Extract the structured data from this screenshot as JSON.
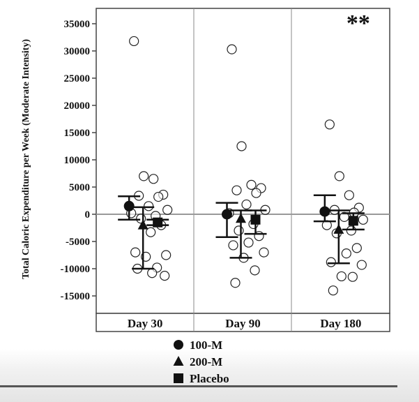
{
  "chart_data": {
    "type": "scatter",
    "title": "",
    "xlabel": "",
    "ylabel": "Total Caloric Expenditure per Week (Moderate Intensity)",
    "ylim": [
      -18000,
      38000
    ],
    "yticks": [
      35000,
      30000,
      25000,
      20000,
      15000,
      10000,
      5000,
      0,
      -5000,
      -10000,
      -15000
    ],
    "categories": [
      "Day 30",
      "Day 90",
      "Day 180"
    ],
    "reference_line": 0,
    "annotations": [
      {
        "text": "**",
        "category": "Day 180"
      }
    ],
    "series": [
      {
        "name": "100-M",
        "marker": "circle",
        "means": [
          1500,
          0,
          500
        ],
        "error_low": [
          -1000,
          -4200,
          -1300
        ],
        "error_high": [
          3300,
          2100,
          3500
        ]
      },
      {
        "name": "200-M",
        "marker": "triangle",
        "means": [
          -2000,
          -800,
          -2800
        ],
        "error_low": [
          -10000,
          -8000,
          -9000
        ],
        "error_high": [
          1300,
          700,
          700
        ]
      },
      {
        "name": "Placebo",
        "marker": "square",
        "means": [
          -1500,
          -1000,
          -1200
        ],
        "error_low": [
          -2000,
          -3600,
          -2800
        ],
        "error_high": [
          -1000,
          700,
          200
        ]
      }
    ],
    "individual_points": [
      {
        "category": "Day 30",
        "values": [
          31800,
          7000,
          6500,
          3600,
          3400,
          3200,
          1500,
          800,
          200,
          -300,
          -800,
          -2000,
          -3300,
          -7000,
          -7500,
          -7800,
          -9800,
          -10000,
          -10800,
          -11300
        ]
      },
      {
        "category": "Day 90",
        "values": [
          30300,
          12500,
          5400,
          4800,
          4400,
          3900,
          1800,
          800,
          200,
          -1800,
          -3000,
          -4000,
          -5200,
          -5700,
          -7000,
          -8000,
          -10300,
          -12600
        ]
      },
      {
        "category": "Day 180",
        "values": [
          16500,
          7000,
          3500,
          1200,
          800,
          300,
          -500,
          -1000,
          -2000,
          -3000,
          -3500,
          -6200,
          -7200,
          -8800,
          -9300,
          -11400,
          -11500,
          -14000
        ]
      }
    ]
  },
  "legend": {
    "items": [
      {
        "label": "100-M",
        "icon": "filled-circle"
      },
      {
        "label": "200-M",
        "icon": "filled-triangle"
      },
      {
        "label": "Placebo",
        "icon": "filled-square"
      }
    ]
  }
}
